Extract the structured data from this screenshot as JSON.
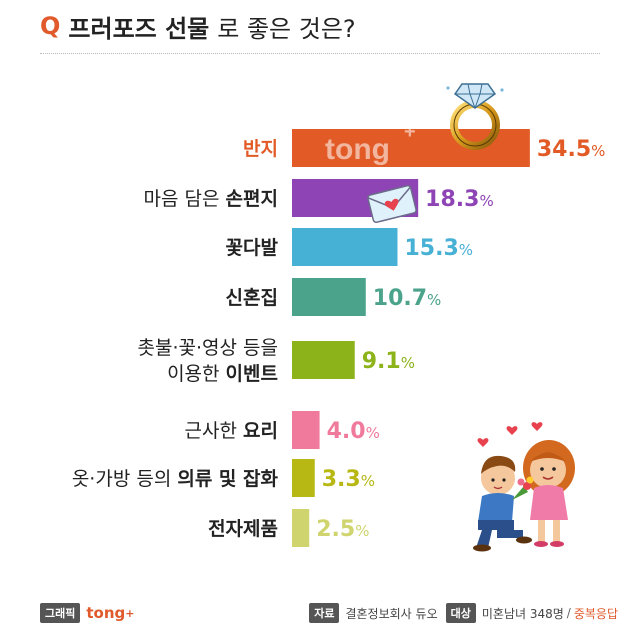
{
  "title": {
    "q": "Q",
    "bold": "프러포즈 선물",
    "regular": "로 좋은 것은?"
  },
  "watermark": "tong",
  "chart_data": {
    "type": "bar",
    "orientation": "horizontal",
    "categories": [
      {
        "lines": [
          "반지"
        ],
        "bold": "반지"
      },
      {
        "lines": [
          "마음 담은 손편지"
        ],
        "bold": "손편지"
      },
      {
        "lines": [
          "꽃다발"
        ],
        "bold": "꽃다발"
      },
      {
        "lines": [
          "신혼집"
        ],
        "bold": "신혼집"
      },
      {
        "lines": [
          "촛불·꽃·영상 등을",
          "이용한 이벤트"
        ],
        "bold": "이벤트"
      },
      {
        "lines": [
          "근사한 요리"
        ],
        "bold": "요리"
      },
      {
        "lines": [
          "옷·가방 등의 의류 및 잡화"
        ],
        "bold": "의류 및 잡화"
      },
      {
        "lines": [
          "전자제품"
        ],
        "bold": "전자제품"
      }
    ],
    "values": [
      34.5,
      18.3,
      15.3,
      10.7,
      9.1,
      4.0,
      3.3,
      2.5
    ],
    "value_labels": [
      "34.5%",
      "18.3%",
      "15.3%",
      "10.7%",
      "9.1%",
      "4.0%",
      "3.3%",
      "2.5%"
    ],
    "colors": [
      "#e25b26",
      "#8e44b5",
      "#47b0d5",
      "#4aa38a",
      "#8db31a",
      "#f07a9c",
      "#b8b815",
      "#cfd46e"
    ],
    "highlight_label_color": "#e25b26",
    "label_color": "#222222",
    "unit": "%",
    "xlim": [
      0,
      38
    ],
    "grid": false,
    "legend": "none"
  },
  "footer": {
    "graphic_tag": "그래픽",
    "brand": "tong",
    "source_tag": "자료",
    "source": "결혼정보회사 듀오",
    "target_tag": "대상",
    "target": "미혼남녀 348명",
    "separator": "/",
    "response": "중복응답"
  },
  "icons": [
    "diamond-ring-icon",
    "love-letter-icon",
    "proposal-couple-illustration"
  ]
}
